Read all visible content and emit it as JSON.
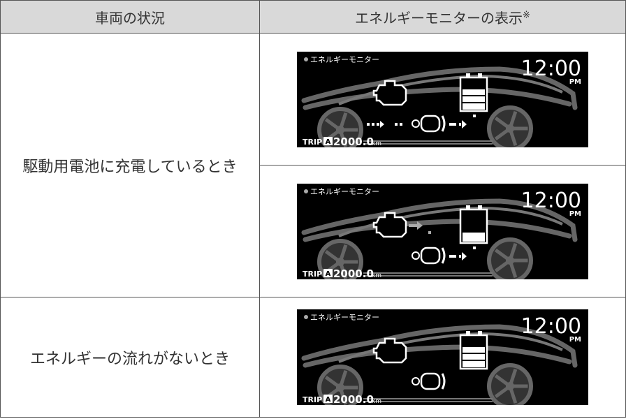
{
  "table": {
    "header": [
      "車両の状況",
      "エネルギーモニターの表示",
      "※"
    ],
    "rows": [
      {
        "condition": "駆動用電池に充電しているとき",
        "displays": [
          {
            "title": "エネルギーモニター",
            "time": "12:00",
            "ampm": "PM",
            "trip": "TRIP",
            "trip_id": "A",
            "distance": "2000.0",
            "unit": "km"
          },
          {
            "title": "エネルギーモニター",
            "time": "12:00",
            "ampm": "PM",
            "trip": "TRIP",
            "trip_id": "A",
            "distance": "2000.0",
            "unit": "km"
          }
        ]
      },
      {
        "condition": "エネルギーの流れがないとき",
        "displays": [
          {
            "title": "エネルギーモニター",
            "time": "12:00",
            "ampm": "PM",
            "trip": "TRIP",
            "trip_id": "A",
            "distance": "2000.0",
            "unit": "km"
          }
        ]
      }
    ]
  }
}
